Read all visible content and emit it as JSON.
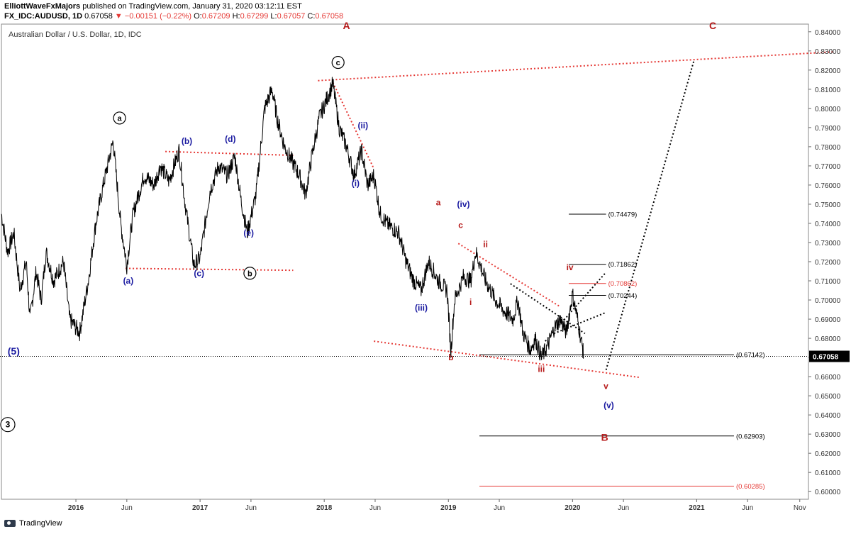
{
  "header": {
    "author": "ElliottWaveFxMajors",
    "published": "published on TradingView.com, January 31, 2020 03:12:11 EST",
    "symbol": "FX_IDC:AUDUSD, 1D",
    "last": "0.67058",
    "change": "▼ −0.00151 (−0.22%)",
    "open_label": "O:",
    "open": "0.67209",
    "high_label": "H:",
    "high": "0.67299",
    "low_label": "L:",
    "low": "0.67057",
    "close_label": "C:",
    "close": "0.67058"
  },
  "footer": {
    "brand": "TradingView"
  },
  "colors": {
    "up": "#000000",
    "red": "#e53935",
    "darkred": "#b71c1c",
    "navy": "#1a1aa0",
    "axis": "#555555"
  },
  "chart_data": {
    "type": "line",
    "title": "Australian Dollar / U.S. Dollar, 1D, IDC",
    "ylim": [
      0.596,
      0.844
    ],
    "xlim": [
      2015.4,
      2021.9
    ],
    "yticks": [
      "0.84000",
      "0.83000",
      "0.82000",
      "0.81000",
      "0.80000",
      "0.79000",
      "0.78000",
      "0.77000",
      "0.76000",
      "0.75000",
      "0.74000",
      "0.73000",
      "0.72000",
      "0.71000",
      "0.70000",
      "0.69000",
      "0.68000",
      "0.67000",
      "0.66000",
      "0.65000",
      "0.64000",
      "0.63000",
      "0.62000",
      "0.61000",
      "0.60000"
    ],
    "xticks": [
      {
        "label": "2016",
        "x": 2016.0
      },
      {
        "label": "Jun",
        "x": 2016.41
      },
      {
        "label": "2017",
        "x": 2017.0
      },
      {
        "label": "Jun",
        "x": 2017.41
      },
      {
        "label": "2018",
        "x": 2018.0
      },
      {
        "label": "Jun",
        "x": 2018.41
      },
      {
        "label": "2019",
        "x": 2019.0
      },
      {
        "label": "Jun",
        "x": 2019.41
      },
      {
        "label": "2020",
        "x": 2020.0
      },
      {
        "label": "Jun",
        "x": 2020.41
      },
      {
        "label": "2021",
        "x": 2021.0
      },
      {
        "label": "Jun",
        "x": 2021.41
      },
      {
        "label": "Nov",
        "x": 2021.83
      }
    ],
    "current_price": {
      "label": "0.67058",
      "value": 0.67058
    },
    "price_path": [
      [
        2015.4,
        0.745
      ],
      [
        2015.45,
        0.725
      ],
      [
        2015.5,
        0.735
      ],
      [
        2015.55,
        0.705
      ],
      [
        2015.6,
        0.72
      ],
      [
        2015.63,
        0.69
      ],
      [
        2015.68,
        0.715
      ],
      [
        2015.72,
        0.7
      ],
      [
        2015.76,
        0.725
      ],
      [
        2015.82,
        0.71
      ],
      [
        2015.9,
        0.72
      ],
      [
        2015.95,
        0.69
      ],
      [
        2016.03,
        0.683
      ],
      [
        2016.1,
        0.71
      ],
      [
        2016.16,
        0.74
      ],
      [
        2016.22,
        0.76
      ],
      [
        2016.3,
        0.783
      ],
      [
        2016.36,
        0.74
      ],
      [
        2016.41,
        0.718
      ],
      [
        2016.46,
        0.745
      ],
      [
        2016.55,
        0.765
      ],
      [
        2016.63,
        0.76
      ],
      [
        2016.68,
        0.77
      ],
      [
        2016.75,
        0.762
      ],
      [
        2016.83,
        0.778
      ],
      [
        2016.88,
        0.75
      ],
      [
        2016.95,
        0.718
      ],
      [
        2017.0,
        0.722
      ],
      [
        2017.08,
        0.757
      ],
      [
        2017.15,
        0.77
      ],
      [
        2017.22,
        0.765
      ],
      [
        2017.28,
        0.775
      ],
      [
        2017.33,
        0.752
      ],
      [
        2017.38,
        0.735
      ],
      [
        2017.45,
        0.755
      ],
      [
        2017.52,
        0.8
      ],
      [
        2017.58,
        0.81
      ],
      [
        2017.62,
        0.795
      ],
      [
        2017.68,
        0.78
      ],
      [
        2017.72,
        0.775
      ],
      [
        2017.8,
        0.765
      ],
      [
        2017.85,
        0.755
      ],
      [
        2017.9,
        0.775
      ],
      [
        2017.96,
        0.795
      ],
      [
        2018.07,
        0.813
      ],
      [
        2018.12,
        0.79
      ],
      [
        2018.18,
        0.78
      ],
      [
        2018.24,
        0.765
      ],
      [
        2018.3,
        0.778
      ],
      [
        2018.35,
        0.76
      ],
      [
        2018.4,
        0.765
      ],
      [
        2018.45,
        0.745
      ],
      [
        2018.5,
        0.74
      ],
      [
        2018.6,
        0.735
      ],
      [
        2018.66,
        0.72
      ],
      [
        2018.72,
        0.71
      ],
      [
        2018.78,
        0.705
      ],
      [
        2018.84,
        0.72
      ],
      [
        2018.92,
        0.71
      ],
      [
        2018.99,
        0.705
      ],
      [
        2019.02,
        0.673
      ],
      [
        2019.05,
        0.7
      ],
      [
        2019.12,
        0.712
      ],
      [
        2019.18,
        0.71
      ],
      [
        2019.22,
        0.725
      ],
      [
        2019.3,
        0.71
      ],
      [
        2019.38,
        0.7
      ],
      [
        2019.45,
        0.694
      ],
      [
        2019.52,
        0.69
      ],
      [
        2019.56,
        0.7
      ],
      [
        2019.6,
        0.683
      ],
      [
        2019.66,
        0.674
      ],
      [
        2019.7,
        0.68
      ],
      [
        2019.75,
        0.67
      ],
      [
        2019.8,
        0.676
      ],
      [
        2019.85,
        0.685
      ],
      [
        2019.9,
        0.69
      ],
      [
        2019.95,
        0.683
      ],
      [
        2020.0,
        0.703
      ],
      [
        2020.04,
        0.69
      ],
      [
        2020.08,
        0.675
      ],
      [
        2020.09,
        0.6706
      ]
    ],
    "wave_labels": [
      {
        "text": "A",
        "x": 2018.15,
        "y": 0.8415,
        "color": "darkred",
        "size": 14
      },
      {
        "text": "C",
        "x": 2021.1,
        "y": 0.8415,
        "color": "darkred",
        "size": 14
      },
      {
        "text": "a",
        "x": 2016.3,
        "y": 0.7935,
        "color": "black",
        "circle": true
      },
      {
        "text": "c",
        "x": 2018.06,
        "y": 0.8225,
        "color": "black",
        "circle": true
      },
      {
        "text": "b",
        "x": 2017.35,
        "y": 0.7125,
        "color": "black",
        "circle": true
      },
      {
        "text": "3",
        "x": 2015.4,
        "y": 0.6335,
        "color": "black",
        "circle": true,
        "size": 13
      },
      {
        "text": "(5)",
        "x": 2015.45,
        "y": 0.6715,
        "color": "navy",
        "size": 14
      },
      {
        "text": "(b)",
        "x": 2016.85,
        "y": 0.7815,
        "color": "navy"
      },
      {
        "text": "(d)",
        "x": 2017.2,
        "y": 0.7825,
        "color": "navy"
      },
      {
        "text": "(a)",
        "x": 2016.38,
        "y": 0.7085,
        "color": "navy"
      },
      {
        "text": "(c)",
        "x": 2016.95,
        "y": 0.7125,
        "color": "navy"
      },
      {
        "text": "(e)",
        "x": 2017.35,
        "y": 0.7335,
        "color": "navy"
      },
      {
        "text": "(ii)",
        "x": 2018.27,
        "y": 0.7895,
        "color": "navy"
      },
      {
        "text": "(i)",
        "x": 2018.22,
        "y": 0.7595,
        "color": "navy"
      },
      {
        "text": "(iv)",
        "x": 2019.07,
        "y": 0.7485,
        "color": "navy"
      },
      {
        "text": "(iii)",
        "x": 2018.73,
        "y": 0.6945,
        "color": "navy"
      },
      {
        "text": "(v)",
        "x": 2020.25,
        "y": 0.6435,
        "color": "navy"
      },
      {
        "text": "a",
        "x": 2018.9,
        "y": 0.7495,
        "color": "darkred"
      },
      {
        "text": "c",
        "x": 2019.08,
        "y": 0.7375,
        "color": "darkred"
      },
      {
        "text": "ii",
        "x": 2019.28,
        "y": 0.7275,
        "color": "darkred"
      },
      {
        "text": "i",
        "x": 2019.17,
        "y": 0.6975,
        "color": "darkred"
      },
      {
        "text": "b",
        "x": 2019.0,
        "y": 0.6685,
        "color": "darkred"
      },
      {
        "text": "iii",
        "x": 2019.72,
        "y": 0.6625,
        "color": "darkred"
      },
      {
        "text": "iv",
        "x": 2019.95,
        "y": 0.7155,
        "color": "darkred"
      },
      {
        "text": "v",
        "x": 2020.25,
        "y": 0.6535,
        "color": "darkred"
      },
      {
        "text": "B",
        "x": 2020.23,
        "y": 0.6265,
        "color": "darkred",
        "size": 14
      }
    ],
    "levels": [
      {
        "label": "(0.74479)",
        "value": 0.74479,
        "x1": 2019.97,
        "x2": 2020.27,
        "color": "black"
      },
      {
        "label": "(0.71862)",
        "value": 0.71862,
        "x1": 2019.97,
        "x2": 2020.27,
        "color": "black"
      },
      {
        "label": "(0.70862)",
        "value": 0.70862,
        "x1": 2019.97,
        "x2": 2020.27,
        "color": "red"
      },
      {
        "label": "(0.70244)",
        "value": 0.70244,
        "x1": 2019.97,
        "x2": 2020.27,
        "color": "black"
      },
      {
        "label": "(0.67142)",
        "value": 0.67142,
        "x1": 2019.25,
        "x2": 2021.3,
        "color": "black"
      },
      {
        "label": "(0.62903)",
        "value": 0.62903,
        "x1": 2019.25,
        "x2": 2021.3,
        "color": "black"
      },
      {
        "label": "(0.60285)",
        "value": 0.60285,
        "x1": 2019.25,
        "x2": 2021.3,
        "color": "red"
      }
    ],
    "trendlines": [
      {
        "from": [
          2017.95,
          0.8145
        ],
        "to": [
          2022.1,
          0.8295
        ],
        "style": "red"
      },
      {
        "from": [
          2016.72,
          0.7775
        ],
        "to": [
          2017.75,
          0.7755
        ],
        "style": "red"
      },
      {
        "from": [
          2016.4,
          0.7165
        ],
        "to": [
          2017.75,
          0.7155
        ],
        "style": "red"
      },
      {
        "from": [
          2018.07,
          0.8135
        ],
        "to": [
          2018.4,
          0.7685
        ],
        "style": "red"
      },
      {
        "from": [
          2018.4,
          0.6785
        ],
        "to": [
          2020.55,
          0.6595
        ],
        "style": "red"
      },
      {
        "from": [
          2019.08,
          0.7295
        ],
        "to": [
          2019.9,
          0.6965
        ],
        "style": "red"
      },
      {
        "from": [
          2019.5,
          0.7085
        ],
        "to": [
          2020.1,
          0.6825
        ],
        "style": "black"
      },
      {
        "from": [
          2019.78,
          0.6785
        ],
        "to": [
          2020.27,
          0.7145
        ],
        "style": "black"
      },
      {
        "from": [
          2019.85,
          0.6825
        ],
        "to": [
          2020.27,
          0.6935
        ],
        "style": "black"
      },
      {
        "from": [
          2020.27,
          0.6635
        ],
        "to": [
          2020.98,
          0.8255
        ],
        "style": "black"
      }
    ]
  }
}
